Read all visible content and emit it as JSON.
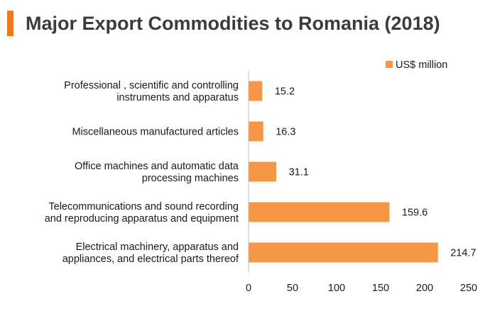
{
  "title": "Major Export Commodities to Romania (2018)",
  "colors": {
    "accent": "#f07b1e",
    "bar": "#f79646",
    "axis": "#bfbfbf"
  },
  "chart_data": {
    "type": "bar",
    "orientation": "horizontal",
    "title": "Major Export Commodities to Romania (2018)",
    "categories": [
      [
        "Professional , scientific and controlling",
        "instruments and apparatus"
      ],
      [
        "Miscellaneous manufactured articles"
      ],
      [
        "Office machines and automatic data",
        "processing machines"
      ],
      [
        "Telecommunications and sound recording",
        "and reproducing apparatus and equipment"
      ],
      [
        "Electrical machinery, apparatus and",
        "appliances, and electrical parts thereof"
      ]
    ],
    "series": [
      {
        "name": "US$ million",
        "values": [
          15.2,
          16.3,
          31.1,
          159.6,
          214.7
        ]
      }
    ],
    "value_labels": [
      "15.2",
      "16.3",
      "31.1",
      "159.6",
      "214.7"
    ],
    "xlim": [
      0,
      250
    ],
    "xticks": [
      "0",
      "50",
      "100",
      "150",
      "200",
      "250"
    ],
    "grid": false,
    "legend": "top-right"
  }
}
